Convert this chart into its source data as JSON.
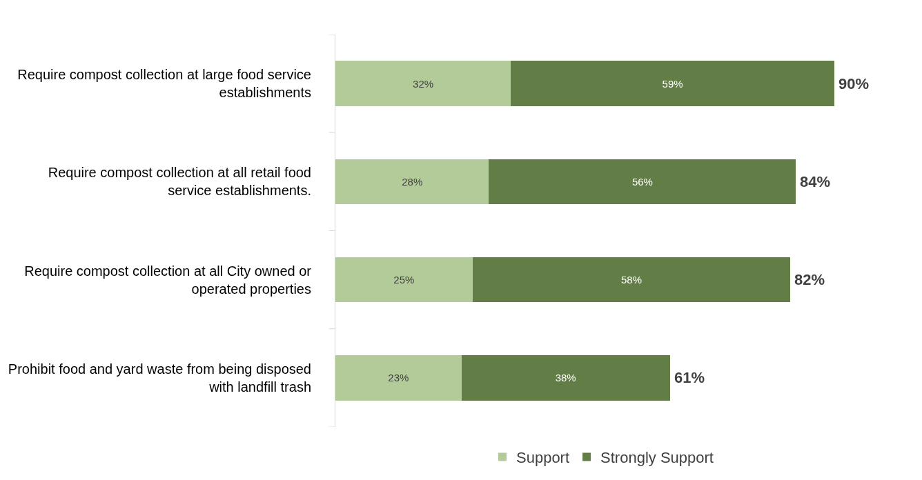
{
  "chart_data": {
    "type": "bar",
    "orientation": "horizontal",
    "stacked": true,
    "categories": [
      "Require compost collection at large food service establishments",
      "Require compost collection at all retail food service establishments.",
      "Require compost collection at all City owned or operated properties",
      "Prohibit food and yard waste from being disposed with landfill trash"
    ],
    "series": [
      {
        "name": "Support",
        "color": "#b3cb99",
        "values": [
          32,
          28,
          25,
          23
        ],
        "value_labels": [
          "32%",
          "28%",
          "25%",
          "23%"
        ]
      },
      {
        "name": "Strongly Support",
        "color": "#627d45",
        "values": [
          59,
          56,
          58,
          38
        ],
        "value_labels": [
          "59%",
          "56%",
          "58%",
          "38%"
        ]
      }
    ],
    "totals": [
      "90%",
      "84%",
      "82%",
      "61%"
    ],
    "legend": "bottom"
  }
}
